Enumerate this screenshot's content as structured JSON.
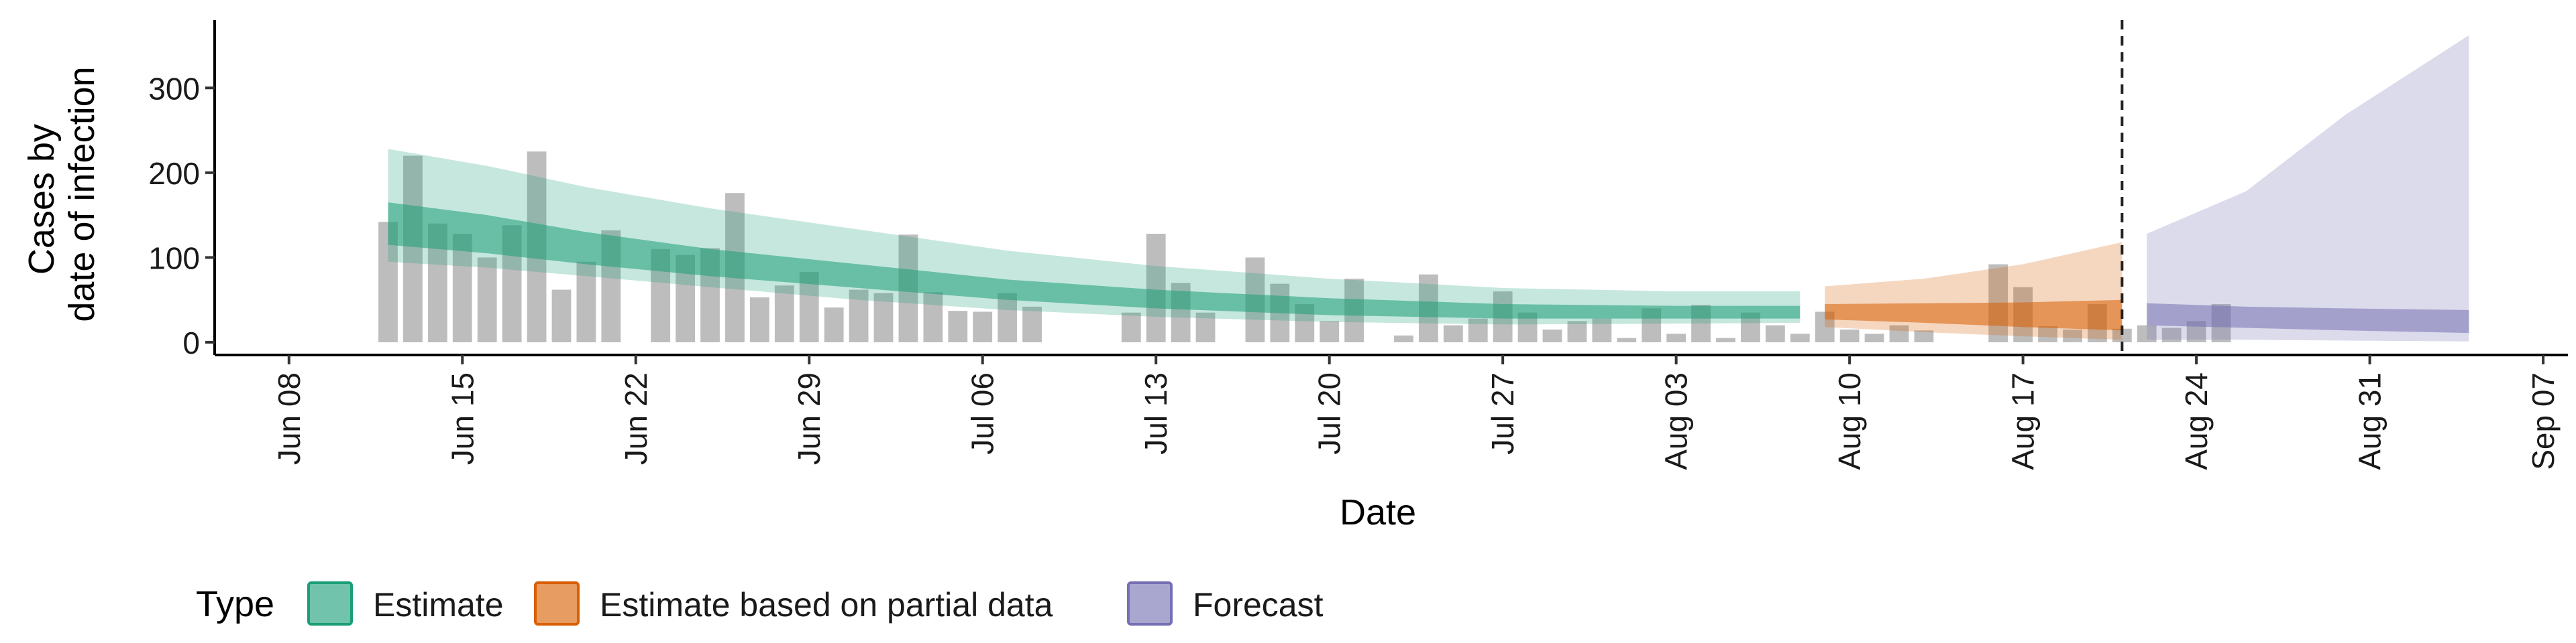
{
  "chart_data": {
    "type": "bar",
    "title": "",
    "xlabel": "Date",
    "ylabel_lines": [
      "Cases by",
      "date of infection"
    ],
    "x_range": [
      "2020-06-05",
      "2020-09-08"
    ],
    "ylim": [
      -15,
      380
    ],
    "y_ticks": [
      0,
      100,
      200,
      300
    ],
    "x_ticks": [
      {
        "date": "2020-06-08",
        "label": "Jun 08"
      },
      {
        "date": "2020-06-15",
        "label": "Jun 15"
      },
      {
        "date": "2020-06-22",
        "label": "Jun 22"
      },
      {
        "date": "2020-06-29",
        "label": "Jun 29"
      },
      {
        "date": "2020-07-06",
        "label": "Jul 06"
      },
      {
        "date": "2020-07-13",
        "label": "Jul 13"
      },
      {
        "date": "2020-07-20",
        "label": "Jul 20"
      },
      {
        "date": "2020-07-27",
        "label": "Jul 27"
      },
      {
        "date": "2020-08-03",
        "label": "Aug 03"
      },
      {
        "date": "2020-08-10",
        "label": "Aug 10"
      },
      {
        "date": "2020-08-17",
        "label": "Aug 17"
      },
      {
        "date": "2020-08-24",
        "label": "Aug 24"
      },
      {
        "date": "2020-08-31",
        "label": "Aug 31"
      },
      {
        "date": "2020-09-07",
        "label": "Sep 07"
      }
    ],
    "vline_date": "2020-08-21",
    "bars": {
      "start_date": "2020-06-12",
      "values": [
        142,
        220,
        140,
        128,
        100,
        138,
        225,
        62,
        95,
        132,
        0,
        110,
        103,
        111,
        176,
        53,
        67,
        83,
        41,
        62,
        58,
        127,
        59,
        37,
        36,
        58,
        42,
        0,
        0,
        0,
        35,
        128,
        70,
        35,
        0,
        100,
        69,
        45,
        25,
        75,
        0,
        8,
        80,
        20,
        28,
        60,
        35,
        15,
        25,
        28,
        5,
        40,
        10,
        44,
        5,
        35,
        20,
        10,
        36,
        15,
        10,
        20,
        14,
        0,
        0,
        92,
        65,
        19,
        15,
        45,
        16,
        20,
        17,
        25,
        45
      ]
    },
    "series": [
      {
        "name": "Estimate",
        "color": "#1B9E77",
        "dates": [
          "2020-06-12",
          "2020-06-16",
          "2020-06-20",
          "2020-06-25",
          "2020-07-01",
          "2020-07-07",
          "2020-07-13",
          "2020-07-20",
          "2020-07-27",
          "2020-08-03",
          "2020-08-08"
        ],
        "lower90": [
          95,
          88,
          78,
          65,
          50,
          38,
          30,
          24,
          21,
          22,
          23
        ],
        "upper90": [
          228,
          208,
          183,
          158,
          133,
          108,
          90,
          75,
          64,
          60,
          60
        ],
        "lower50": [
          115,
          105,
          92,
          78,
          64,
          50,
          40,
          32,
          28,
          28,
          28
        ],
        "upper50": [
          165,
          150,
          130,
          110,
          92,
          74,
          62,
          52,
          45,
          43,
          43
        ]
      },
      {
        "name": "Estimate based on partial data",
        "color": "#D95F02",
        "dates": [
          "2020-08-09",
          "2020-08-13",
          "2020-08-17",
          "2020-08-21"
        ],
        "lower90": [
          18,
          12,
          7,
          3
        ],
        "upper90": [
          66,
          75,
          92,
          118
        ],
        "lower50": [
          27,
          23,
          18,
          14
        ],
        "upper50": [
          45,
          46,
          47,
          50
        ]
      },
      {
        "name": "Forecast",
        "color": "#7570B3",
        "dates": [
          "2020-08-22",
          "2020-08-26",
          "2020-08-30",
          "2020-09-04"
        ],
        "lower90": [
          3,
          3,
          2,
          1
        ],
        "upper90": [
          128,
          178,
          268,
          362
        ],
        "lower50": [
          20,
          17,
          14,
          11
        ],
        "upper50": [
          46,
          42,
          40,
          38
        ]
      }
    ],
    "legend": {
      "title": "Type",
      "position": "bottom",
      "entries": [
        "Estimate",
        "Estimate based on partial data",
        "Forecast"
      ]
    },
    "grid": false
  }
}
